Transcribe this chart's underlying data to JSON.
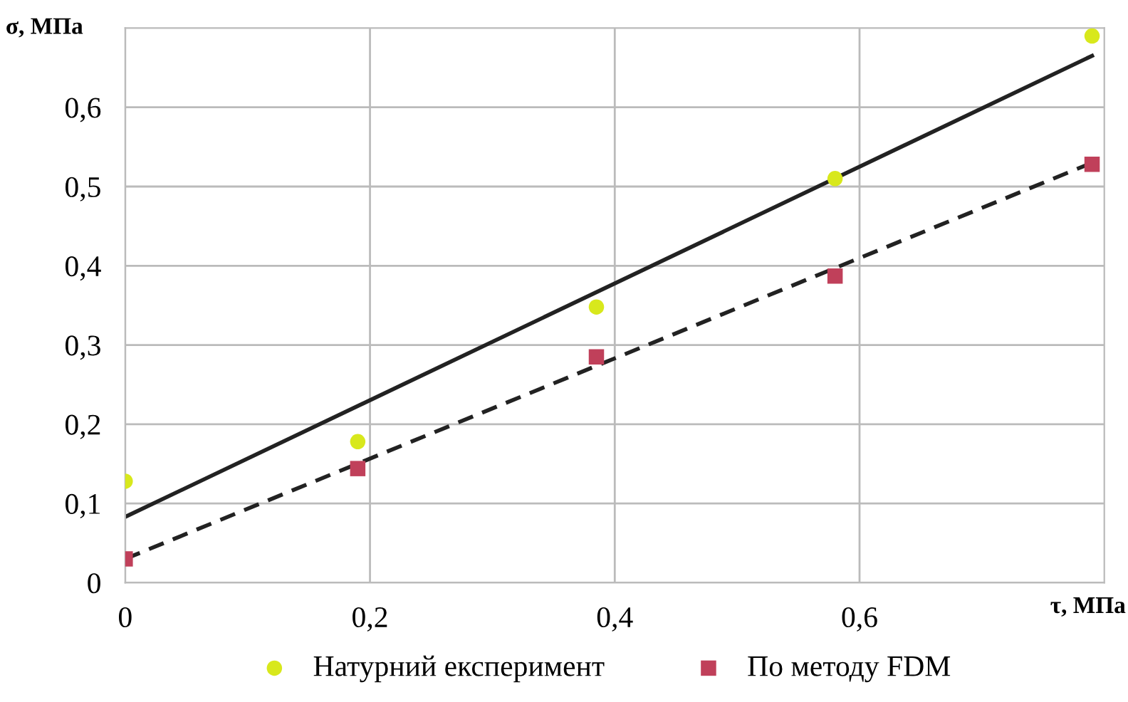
{
  "chart_data": {
    "type": "scatter",
    "xlabel": "τ, МПа",
    "ylabel": "σ, МПа",
    "xlim": [
      0,
      0.8
    ],
    "ylim": [
      0,
      0.7
    ],
    "xticks": [
      0,
      {
        "value": 0.2,
        "label": "0,2"
      },
      {
        "value": 0.4,
        "label": "0,4"
      },
      {
        "value": 0.6,
        "label": "0,6"
      }
    ],
    "yticks": [
      0,
      {
        "value": 0.1,
        "label": "0,1"
      },
      {
        "value": 0.2,
        "label": "0,2"
      },
      {
        "value": 0.3,
        "label": "0,3"
      },
      {
        "value": 0.4,
        "label": "0,4"
      },
      {
        "value": 0.5,
        "label": "0,5"
      },
      {
        "value": 0.6,
        "label": "0,6"
      }
    ],
    "grid": true,
    "legend": "bottom",
    "series": [
      {
        "name": "Натурний експеримент",
        "marker": "circle",
        "color": "#d8e81c",
        "x": [
          0,
          0.19,
          0.385,
          0.58,
          0.79
        ],
        "values": [
          0.128,
          0.178,
          0.348,
          0.51,
          0.69
        ]
      },
      {
        "name": "По методу FDM",
        "marker": "square",
        "color": "#c0405a",
        "x": [
          0,
          0.19,
          0.385,
          0.58,
          0.79
        ],
        "values": [
          0.03,
          0.144,
          0.285,
          0.387,
          0.528
        ]
      },
      {
        "type": "line",
        "line_style": "solid",
        "color": "#222222",
        "x": [
          0,
          0.79
        ],
        "values": [
          0.083,
          0.665
        ]
      },
      {
        "type": "line",
        "line_style": "dashed",
        "color": "#222222",
        "x": [
          0,
          0.79
        ],
        "values": [
          0.03,
          0.53
        ]
      }
    ]
  }
}
